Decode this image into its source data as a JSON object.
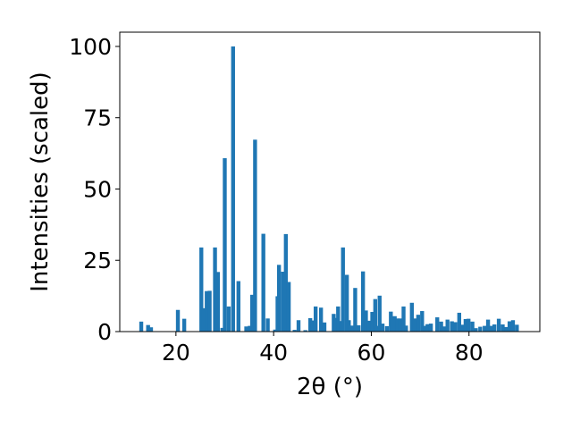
{
  "chart_data": {
    "type": "bar",
    "title": "",
    "xlabel": "2θ (°)",
    "ylabel": "Intensities (scaled)",
    "xlim": [
      8.5,
      94.5
    ],
    "ylim": [
      0,
      105
    ],
    "xticks": [
      20,
      40,
      60,
      80
    ],
    "yticks": [
      0,
      25,
      50,
      75,
      100
    ],
    "grid": false,
    "bar_color": "#1f77b4",
    "bar_width": 0.8,
    "x": [
      12.9,
      14.3,
      14.9,
      20.4,
      21.7,
      25.2,
      25.6,
      26.3,
      26.9,
      28.0,
      28.6,
      29.5,
      30.0,
      30.8,
      31.7,
      32.8,
      34.4,
      35.1,
      35.6,
      36.2,
      37.9,
      38.8,
      40.3,
      40.8,
      41.1,
      41.9,
      42.5,
      43.1,
      44.3,
      45.1,
      46.5,
      47.5,
      47.9,
      48.6,
      49.7,
      50.4,
      52.3,
      52.8,
      53.2,
      53.8,
      54.2,
      55.0,
      55.4,
      56.2,
      56.7,
      57.4,
      58.3,
      58.9,
      59.5,
      60.2,
      60.8,
      61.2,
      61.7,
      62.3,
      63.2,
      64.0,
      64.8,
      65.3,
      65.9,
      66.6,
      67.1,
      68.3,
      68.9,
      69.6,
      70.4,
      71.0,
      71.5,
      72.2,
      73.5,
      74.3,
      74.9,
      75.6,
      76.5,
      77.2,
      78.0,
      78.6,
      79.3,
      79.9,
      80.7,
      81.4,
      82.3,
      83.2,
      83.9,
      84.5,
      85.2,
      86.1,
      86.9,
      87.6,
      88.3,
      89.0,
      89.8
    ],
    "values": [
      3.5,
      2.3,
      1.5,
      7.6,
      4.5,
      29.5,
      8.2,
      14.2,
      14.3,
      29.5,
      20.9,
      1.3,
      60.8,
      8.8,
      100.0,
      17.7,
      1.8,
      2.0,
      12.9,
      67.3,
      34.3,
      4.6,
      0.7,
      12.4,
      23.4,
      21.0,
      34.2,
      17.4,
      0.6,
      4.0,
      0.5,
      4.7,
      3.9,
      8.8,
      8.4,
      3.2,
      6.2,
      4.8,
      8.8,
      3.7,
      29.5,
      19.9,
      4.0,
      2.1,
      15.3,
      2.2,
      21.1,
      7.4,
      3.8,
      6.9,
      11.4,
      2.0,
      12.6,
      2.8,
      1.9,
      7.0,
      5.4,
      4.6,
      4.6,
      8.8,
      2.1,
      10.1,
      4.6,
      5.9,
      7.2,
      2.0,
      2.6,
      2.8,
      5.0,
      3.5,
      1.8,
      4.2,
      3.6,
      3.3,
      6.6,
      2.4,
      4.4,
      4.5,
      3.5,
      1.2,
      1.7,
      2.0,
      4.2,
      2.0,
      2.5,
      4.5,
      2.5,
      1.6,
      3.6,
      4.0,
      2.4
    ]
  }
}
